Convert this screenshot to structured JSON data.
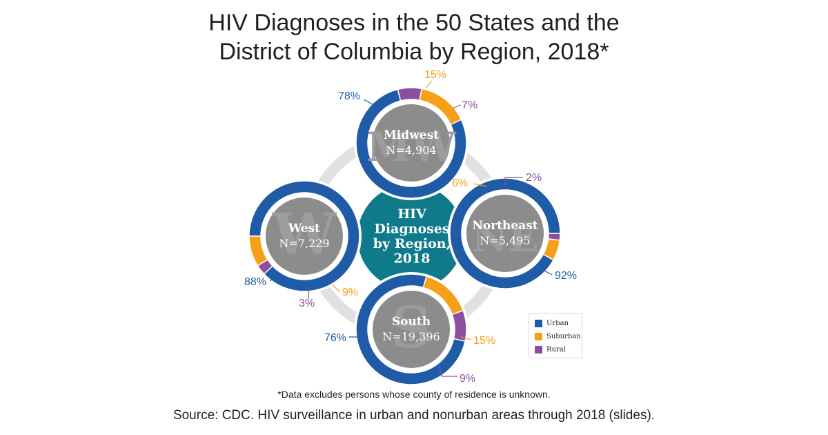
{
  "title": {
    "line1": "HIV Diagnoses in the 50 States and the",
    "line2": "District of Columbia by Region, 2018*"
  },
  "footnote": "*Data excludes persons whose county of residence is unknown.",
  "source": "Source: CDC. HIV surveillance in urban and nonurban areas through 2018 (slides).",
  "colors": {
    "urban": "#1f5ba7",
    "suburban": "#f6a01a",
    "rural": "#8c4f9d",
    "center": "#0f7a8a",
    "inner": "#8c8c8c",
    "connector": "#e1e1e1",
    "watermark": "#9c9c9c"
  },
  "legend": [
    {
      "key": "urban",
      "label": "Urban"
    },
    {
      "key": "suburban",
      "label": "Suburban"
    },
    {
      "key": "rural",
      "label": "Rural"
    }
  ],
  "chart_data": {
    "type": "pie",
    "center_label": [
      "HIV",
      "Diagnoses",
      "by Region,",
      "2018"
    ],
    "categories": [
      "Urban",
      "Suburban",
      "Rural"
    ],
    "regions": [
      {
        "name": "Midwest",
        "abbr": "MW",
        "n_label": "N=4,904",
        "values": [
          78,
          15,
          7
        ],
        "value_labels": [
          "78%",
          "15%",
          "7%"
        ]
      },
      {
        "name": "West",
        "abbr": "W",
        "n_label": "N=7,229",
        "values": [
          88,
          9,
          3
        ],
        "value_labels": [
          "88%",
          "9%",
          "3%"
        ]
      },
      {
        "name": "Northeast",
        "abbr": "NE",
        "n_label": "N=5,495",
        "values": [
          92,
          6,
          2
        ],
        "value_labels": [
          "92%",
          "6%",
          "2%"
        ]
      },
      {
        "name": "South",
        "abbr": "S",
        "n_label": "N=19,396",
        "values": [
          76,
          15,
          9
        ],
        "value_labels": [
          "76%",
          "15%",
          "9%"
        ]
      }
    ],
    "legend_position": "bottom-right"
  }
}
